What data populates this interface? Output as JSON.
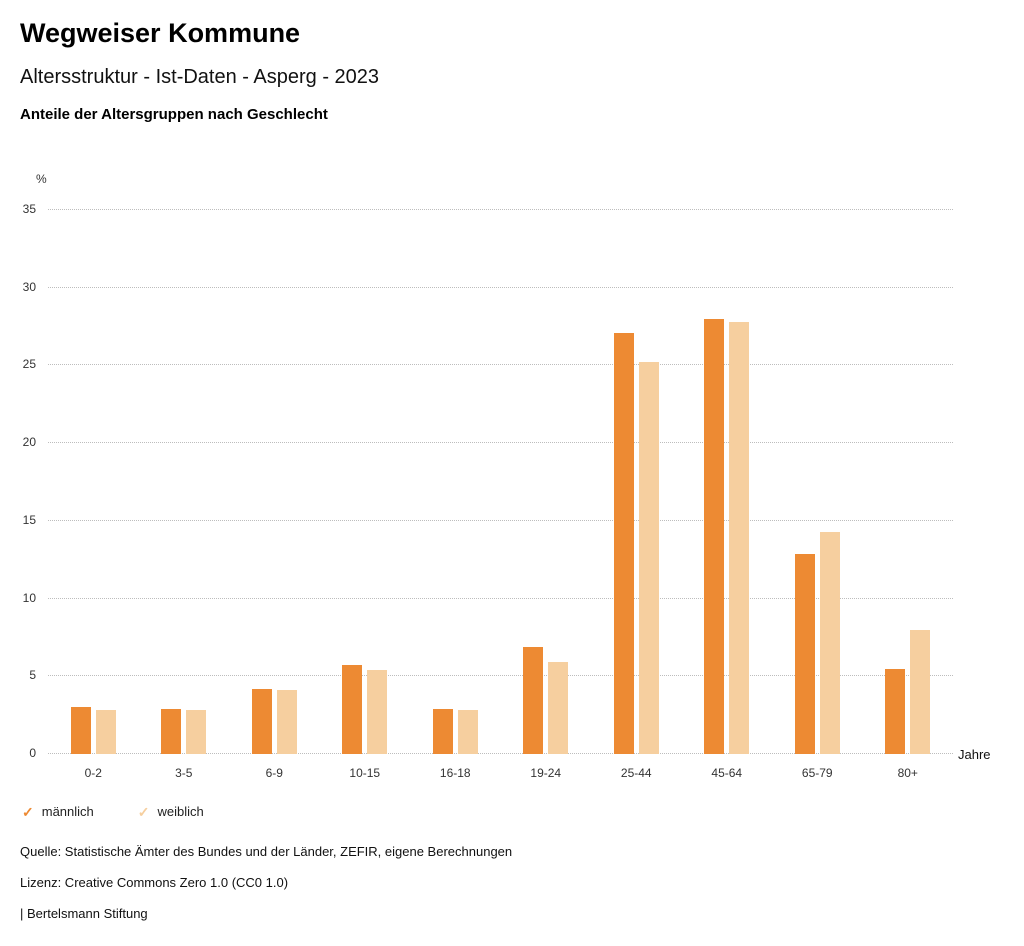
{
  "header": {
    "title": "Wegweiser Kommune",
    "subtitle": "Altersstruktur - Ist-Daten - Asperg - 2023",
    "chart_heading": "Anteile der Altersgruppen nach Geschlecht"
  },
  "chart_data": {
    "type": "bar",
    "title": "Anteile der Altersgruppen nach Geschlecht",
    "categories": [
      "0-2",
      "3-5",
      "6-9",
      "10-15",
      "16-18",
      "19-24",
      "25-44",
      "45-64",
      "65-79",
      "80+"
    ],
    "series": [
      {
        "name": "männlich",
        "color": "#ED8A33",
        "values": [
          3.0,
          2.9,
          4.2,
          5.7,
          2.9,
          6.9,
          27.1,
          28.0,
          12.9,
          5.5
        ]
      },
      {
        "name": "weiblich",
        "color": "#F6CF9F",
        "values": [
          2.8,
          2.8,
          4.1,
          5.4,
          2.8,
          5.9,
          25.2,
          27.8,
          14.3,
          8.0
        ]
      }
    ],
    "ylabel": "%",
    "xlabel": "Jahre",
    "ylim": [
      0,
      35
    ],
    "yticks": [
      0,
      5,
      10,
      15,
      20,
      25,
      30,
      35
    ],
    "grid": true,
    "legend_position": "bottom"
  },
  "legend": {
    "check_icon": "✓"
  },
  "footer": {
    "source": "Quelle: Statistische Ämter des Bundes und der Länder, ZEFIR, eigene Berechnungen",
    "license": "Lizenz: Creative Commons Zero 1.0 (CC0 1.0)",
    "brand": "| Bertelsmann Stiftung"
  }
}
